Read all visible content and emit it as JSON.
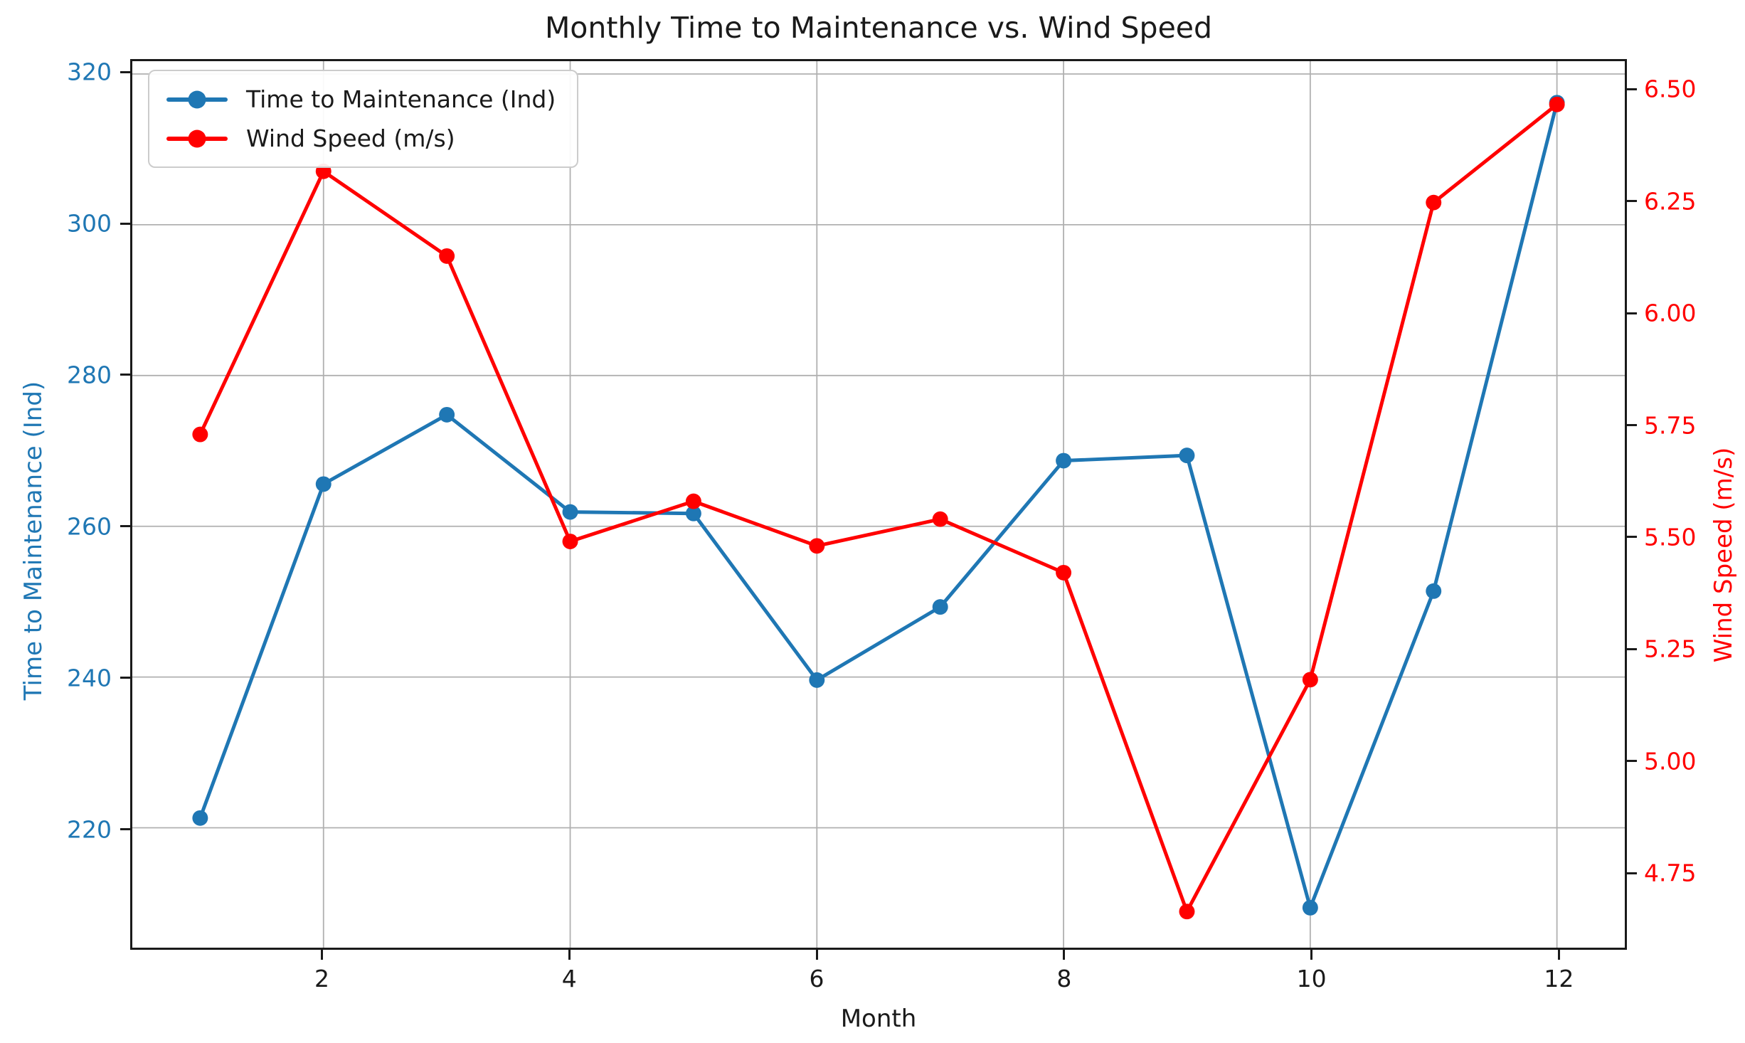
{
  "chart_data": {
    "type": "line",
    "title": "Monthly Time to Maintenance vs. Wind Speed",
    "xlabel": "Month",
    "x": [
      1,
      2,
      3,
      4,
      5,
      6,
      7,
      8,
      9,
      10,
      11,
      12
    ],
    "x_ticks": [
      2,
      4,
      6,
      8,
      10,
      12
    ],
    "xlim": [
      0.45,
      12.55
    ],
    "series": [
      {
        "name": "Time to Maintenance (Ind)",
        "axis": "left",
        "color": "#1f77b4",
        "marker": "circle",
        "values": [
          221.3,
          265.6,
          274.8,
          261.9,
          261.7,
          239.6,
          249.3,
          268.7,
          269.4,
          209.4,
          251.4,
          316.2
        ]
      },
      {
        "name": "Wind Speed (m/s)",
        "axis": "right",
        "color": "#ff0000",
        "marker": "circle",
        "values": [
          5.73,
          6.32,
          6.13,
          5.49,
          5.58,
          5.48,
          5.54,
          5.42,
          4.66,
          5.18,
          6.25,
          6.47
        ]
      }
    ],
    "left_axis": {
      "label": "Time to Maintenance (Ind)",
      "color": "#1f77b4",
      "tick_values": [
        320,
        300,
        280,
        260,
        240,
        220
      ],
      "tick_labels": [
        "320",
        "300",
        "280",
        "260",
        "240",
        "220"
      ],
      "ylim": [
        204.1,
        321.7
      ]
    },
    "right_axis": {
      "label": "Wind Speed (m/s)",
      "color": "#ff0000",
      "tick_values": [
        6.5,
        6.25,
        6.0,
        5.75,
        5.5,
        5.25,
        5.0,
        4.75
      ],
      "tick_labels": [
        "6.50",
        "6.25",
        "6.00",
        "5.75",
        "5.50",
        "5.25",
        "5.00",
        "4.75"
      ],
      "ylim": [
        4.579,
        6.567
      ]
    },
    "grid": {
      "color": "#b0b0b0",
      "horizontal": "left_ticks",
      "vertical": "x_ticks"
    },
    "legend": {
      "location": "upper left",
      "entries": [
        "Time to Maintenance (Ind)",
        "Wind Speed (m/s)"
      ]
    }
  }
}
